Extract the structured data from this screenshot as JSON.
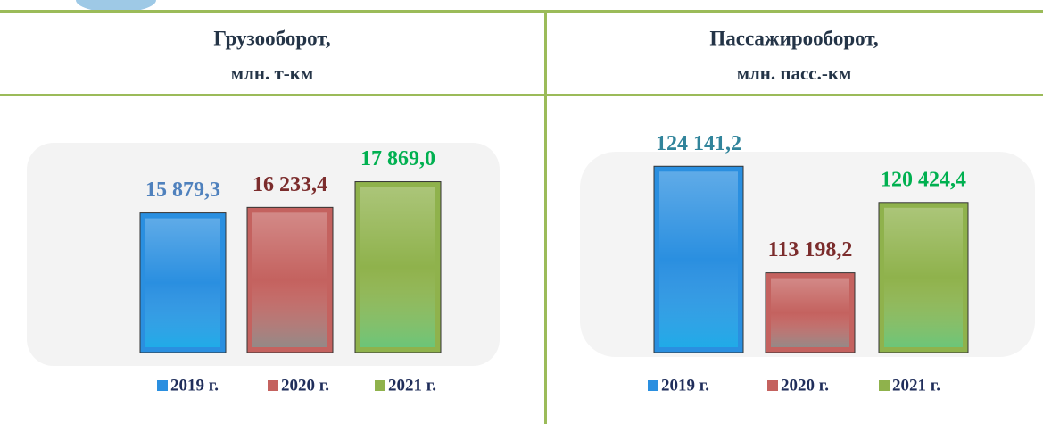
{
  "chart_data": [
    {
      "type": "bar",
      "title": "Грузооборот,",
      "subtitle": "млн. т-км",
      "categories": [
        "2019 г.",
        "2020 г.",
        "2021 г."
      ],
      "values": [
        15879.3,
        16233.4,
        17869.0
      ],
      "value_labels": [
        "15 879,3",
        "16 233,4",
        "17 869,0"
      ],
      "colors": [
        "#2a8fe0",
        "#c4625f",
        "#8fb24c"
      ],
      "label_colors": [
        "#4f81bd",
        "#7b2c2c",
        "#00b050"
      ],
      "ylim": [
        7000,
        20000
      ]
    },
    {
      "type": "bar",
      "title": "Пассажирооборот,",
      "subtitle": "млн. пасс.-км",
      "categories": [
        "2019 г.",
        "2020 г.",
        "2021 г."
      ],
      "values": [
        124141.2,
        113198.2,
        120424.4
      ],
      "value_labels": [
        "124 141,2",
        "113 198,2",
        "120 424,4"
      ],
      "colors": [
        "#2a8fe0",
        "#c4625f",
        "#8fb24c"
      ],
      "label_colors": [
        "#31849b",
        "#7b2c2c",
        "#00b050"
      ],
      "ylim": [
        105000,
        126000
      ]
    }
  ]
}
